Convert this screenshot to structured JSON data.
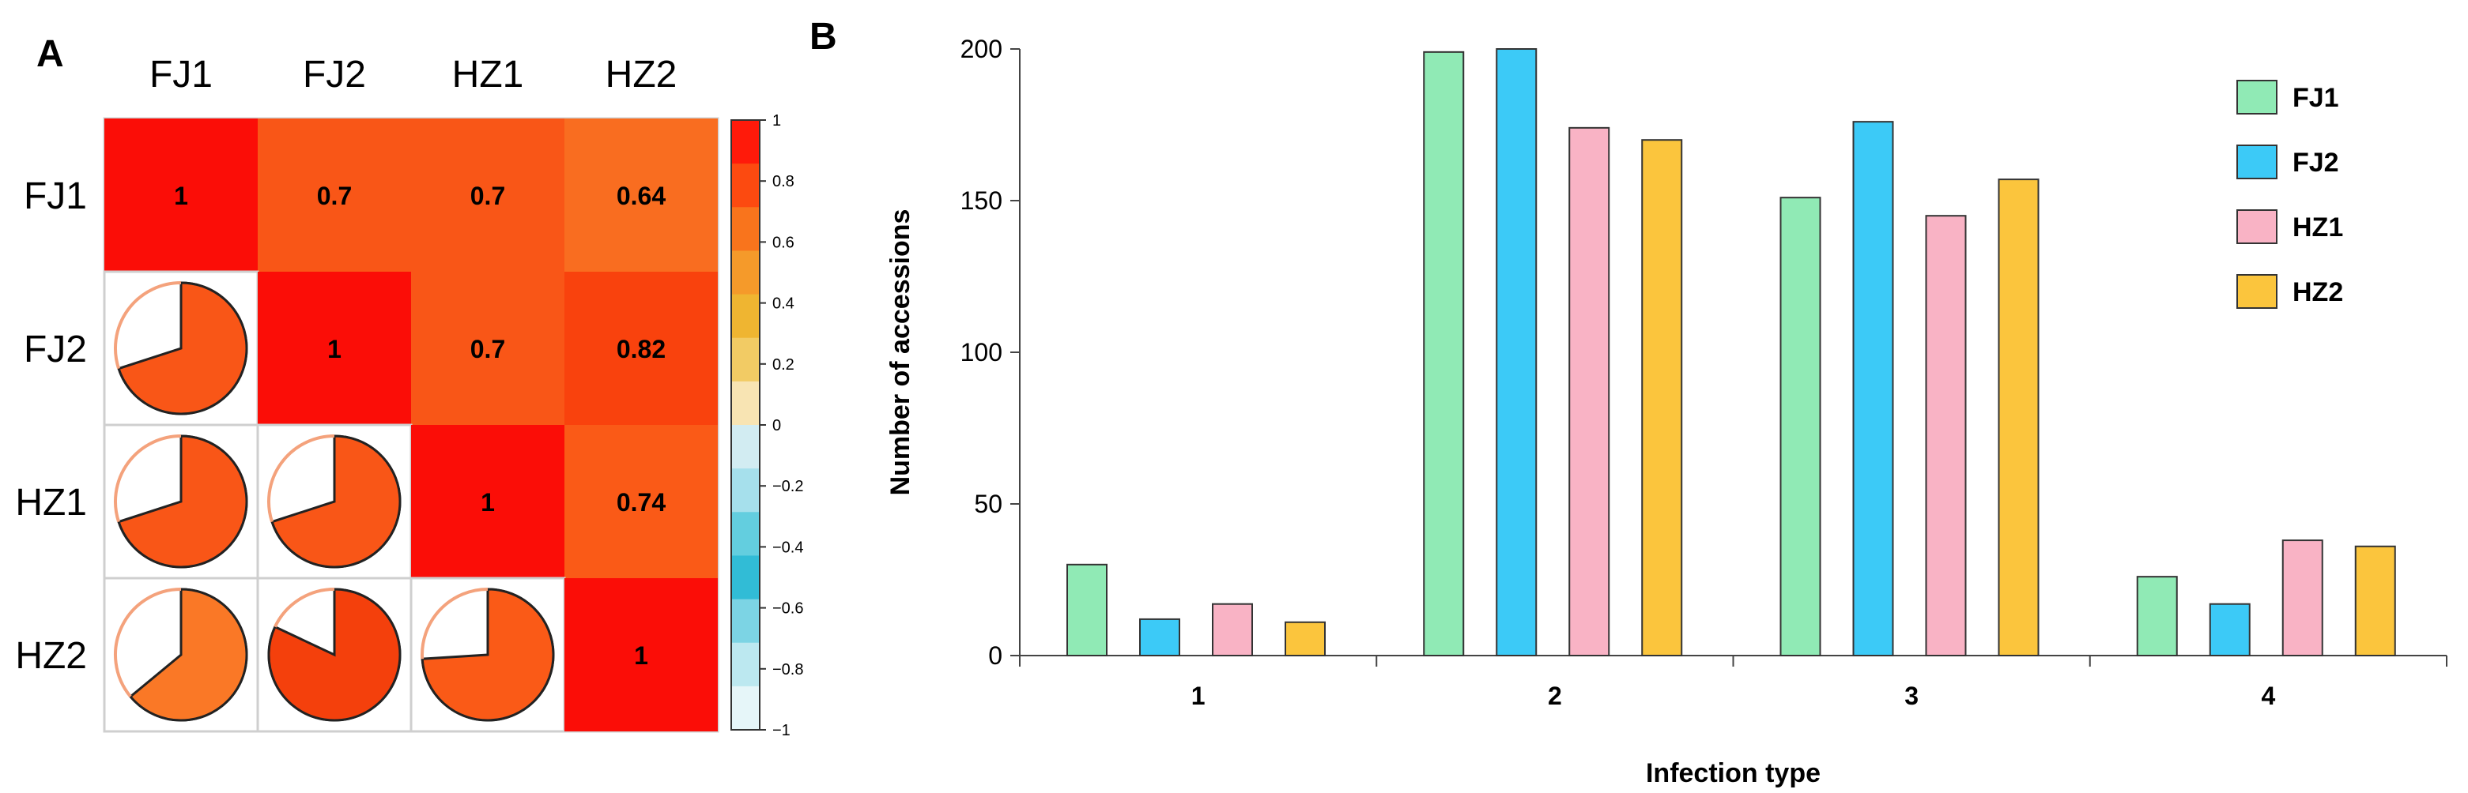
{
  "panels": {
    "a_label": "A",
    "b_label": "B"
  },
  "colors": {
    "corr_red": "#fb0d07",
    "corr_070": "#f95617",
    "corr_064": "#f96d20",
    "corr_082": "#f9420d",
    "corr_074": "#fa5a17",
    "pie_hz2_fj1": "#fa7826",
    "pie_hz2_fj2": "#f4400c",
    "bar_fj1": "#90eab5",
    "bar_fj2": "#3ccaf7",
    "bar_hz1": "#f9b3c5",
    "bar_hz2": "#fbc53d",
    "bar_stroke": "#333333"
  },
  "chart_data": [
    {
      "type": "heatmap",
      "variables": [
        "FJ1",
        "FJ2",
        "HZ1",
        "HZ2"
      ],
      "matrix": [
        [
          1,
          0.7,
          0.7,
          0.64
        ],
        [
          0.7,
          1,
          0.7,
          0.82
        ],
        [
          0.7,
          0.7,
          1,
          0.74
        ],
        [
          0.64,
          0.82,
          0.74,
          1
        ]
      ],
      "upper_labels": [
        {
          "row": 0,
          "col": 0,
          "text": "1"
        },
        {
          "row": 0,
          "col": 1,
          "text": "0.7"
        },
        {
          "row": 0,
          "col": 2,
          "text": "0.7"
        },
        {
          "row": 0,
          "col": 3,
          "text": "0.64"
        },
        {
          "row": 1,
          "col": 1,
          "text": "1"
        },
        {
          "row": 1,
          "col": 2,
          "text": "0.7"
        },
        {
          "row": 1,
          "col": 3,
          "text": "0.82"
        },
        {
          "row": 2,
          "col": 2,
          "text": "1"
        },
        {
          "row": 2,
          "col": 3,
          "text": "0.74"
        },
        {
          "row": 3,
          "col": 3,
          "text": "1"
        }
      ],
      "lower_pies": [
        {
          "row": 1,
          "col": 0,
          "value": 0.7
        },
        {
          "row": 2,
          "col": 0,
          "value": 0.7
        },
        {
          "row": 2,
          "col": 1,
          "value": 0.7
        },
        {
          "row": 3,
          "col": 0,
          "value": 0.64
        },
        {
          "row": 3,
          "col": 1,
          "value": 0.82
        },
        {
          "row": 3,
          "col": 2,
          "value": 0.74
        }
      ],
      "colorbar": {
        "range": [
          -1,
          1
        ],
        "ticks": [
          "1",
          "0.8",
          "0.6",
          "0.4",
          "0.2",
          "0",
          "−0.2",
          "−0.4",
          "−0.6",
          "−0.8",
          "−1"
        ],
        "colors": [
          "#ff1a0a",
          "#fc4a10",
          "#f9741c",
          "#f59a2a",
          "#efb531",
          "#f2cb64",
          "#f8e4b3",
          "#d2ecf2",
          "#a6e0ec",
          "#63cedf",
          "#31bcd6",
          "#7cd4e4",
          "#bce8f0",
          "#e6f6f9"
        ]
      }
    },
    {
      "type": "bar",
      "categories": [
        "1",
        "2",
        "3",
        "4"
      ],
      "series": [
        {
          "name": "FJ1",
          "values": [
            30,
            199,
            151,
            26
          ]
        },
        {
          "name": "FJ2",
          "values": [
            12,
            200,
            176,
            17
          ]
        },
        {
          "name": "HZ1",
          "values": [
            17,
            174,
            145,
            38
          ]
        },
        {
          "name": "HZ2",
          "values": [
            11,
            170,
            157,
            36
          ]
        }
      ],
      "xlabel": "Infection type",
      "ylabel": "Number of accessions",
      "ylim": [
        0,
        200
      ],
      "yticks": [
        0,
        50,
        100,
        150,
        200
      ],
      "legend": "top-right"
    }
  ]
}
